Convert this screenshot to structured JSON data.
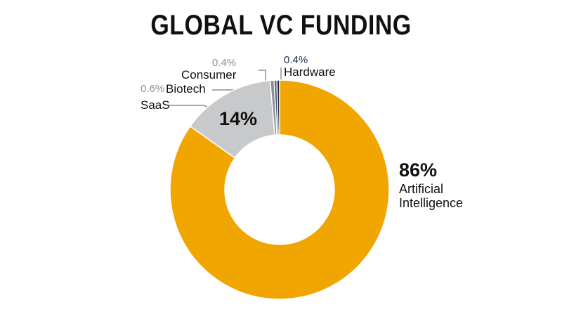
{
  "chart_data": {
    "type": "donut",
    "title": "GLOBAL VC FUNDING",
    "categories": [
      "Artificial Intelligence",
      "SaaS",
      "Biotech",
      "Consumer",
      "Hardware"
    ],
    "values": [
      86,
      14,
      0.6,
      0.4,
      0.4
    ],
    "value_labels": [
      "86%",
      "14%",
      "0.6%",
      "0.4%",
      "0.4%"
    ],
    "colors": [
      "#f0a500",
      "#c8c9cb",
      "#8b909a",
      "#4b5569",
      "#1d2b4b"
    ]
  }
}
